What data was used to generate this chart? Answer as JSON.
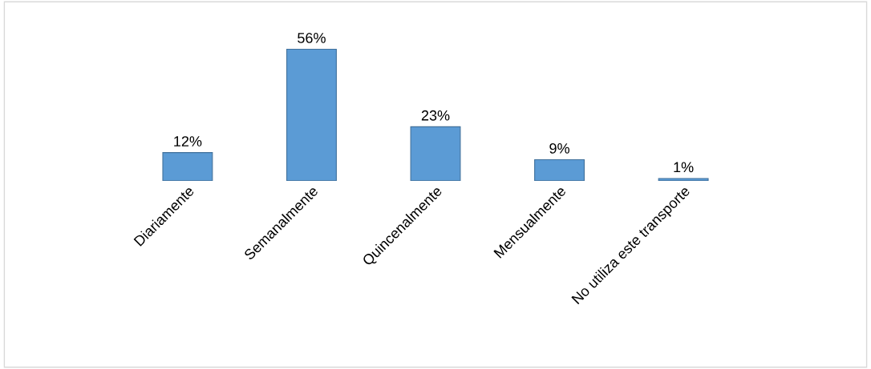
{
  "chart_data": {
    "type": "bar",
    "categories": [
      "Diariamente",
      "Semanalmente",
      "Quincenalmente",
      "Mensualmente",
      "No utiliza este transporte"
    ],
    "values": [
      12,
      56,
      23,
      9,
      1
    ],
    "value_labels": [
      "12%",
      "56%",
      "23%",
      "9%",
      "1%"
    ],
    "color": "#5b9bd5",
    "grid": false,
    "legend": false
  }
}
